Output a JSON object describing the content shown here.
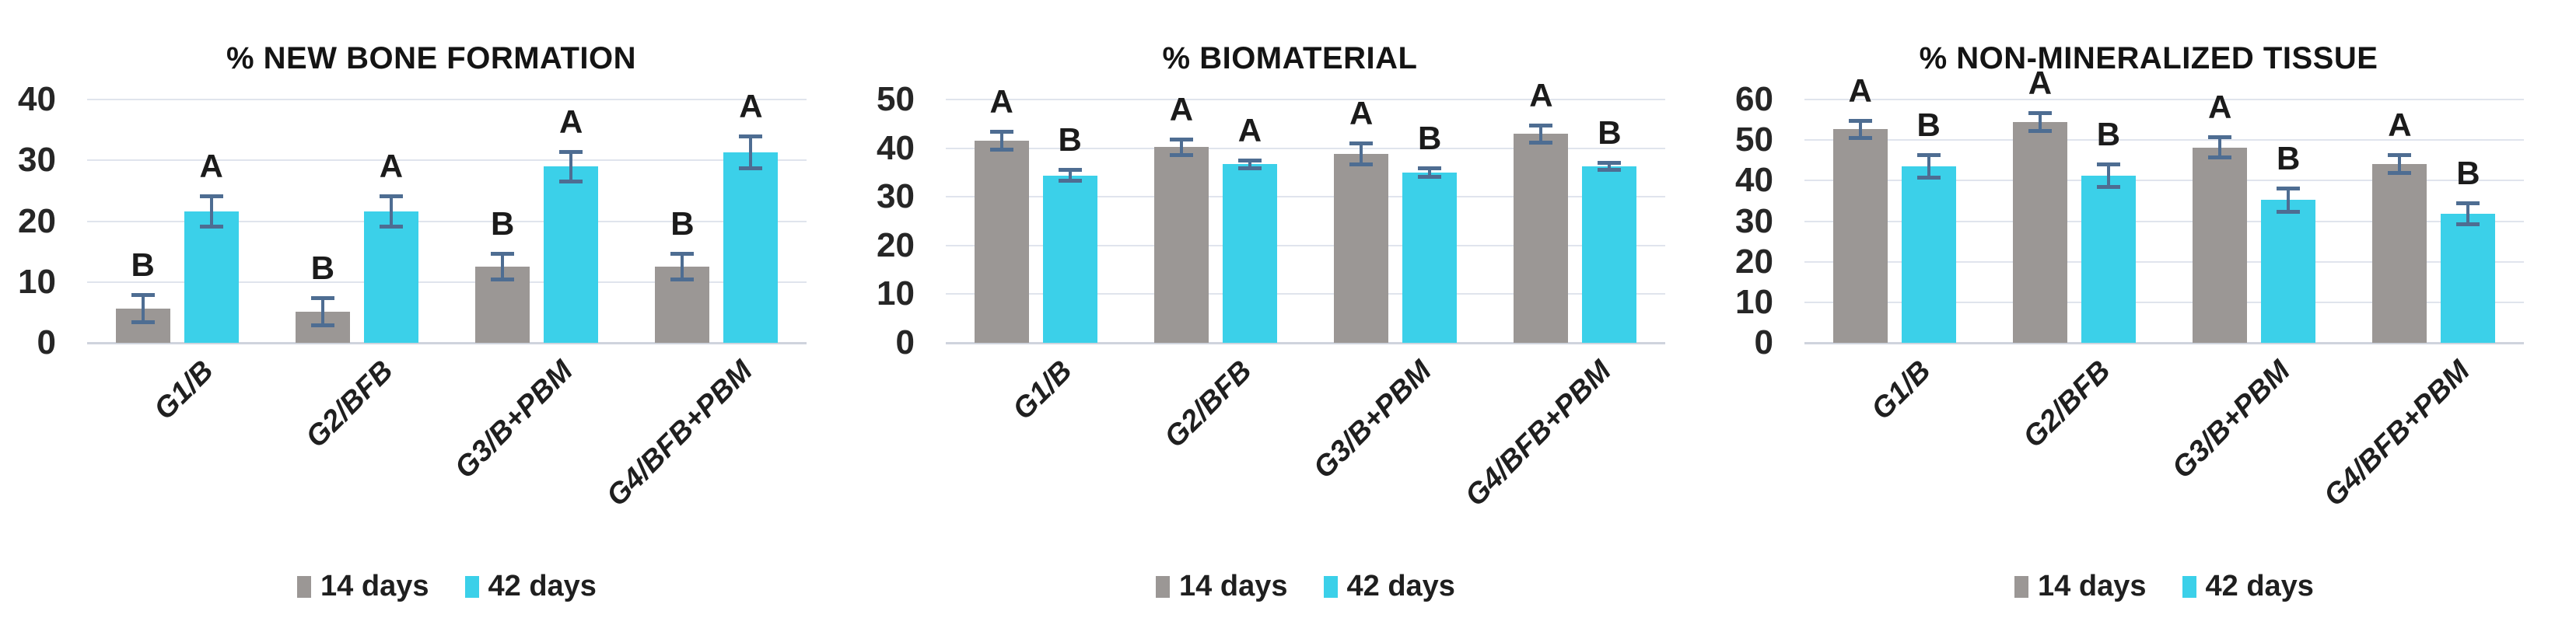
{
  "palette": {
    "bar_gray": "#9b9795",
    "bar_cyan": "#3bd0e9",
    "error_bar": "#4e6d92",
    "gridline": "#e0e4ed",
    "axis_line": "#cfd4dd",
    "title_text": "#141414",
    "tick_text": "#262626",
    "legend_text": "#1f1f1f"
  },
  "legend": {
    "items": [
      {
        "label": "14 days",
        "color_key": "bar_gray"
      },
      {
        "label": "42 days",
        "color_key": "bar_cyan"
      }
    ]
  },
  "chart_data": [
    {
      "type": "bar",
      "title": "% NEW BONE FORMATION",
      "categories": [
        "G1/B",
        "G2/BFB",
        "G3/B+PBM",
        "G4/BFB+PBM"
      ],
      "series": [
        {
          "name": "14 days",
          "values": [
            5.6,
            5.1,
            12.5,
            12.5
          ],
          "errors": [
            2.3,
            2.3,
            2.2,
            2.2
          ],
          "letters": [
            "B",
            "B",
            "B",
            "B"
          ]
        },
        {
          "name": "42 days",
          "values": [
            21.6,
            21.6,
            29.0,
            31.3
          ],
          "errors": [
            2.6,
            2.6,
            2.5,
            2.7
          ],
          "letters": [
            "A",
            "A",
            "A",
            "A"
          ]
        }
      ],
      "ylim": [
        0,
        40
      ],
      "ytick_step": 10,
      "grid": true,
      "legend_position": "bottom"
    },
    {
      "type": "bar",
      "title": "% BIOMATERIAL",
      "categories": [
        "G1/B",
        "G2/BFB",
        "G3/B+PBM",
        "G4/BFB+PBM"
      ],
      "series": [
        {
          "name": "14 days",
          "values": [
            41.5,
            40.2,
            38.8,
            42.9
          ],
          "errors": [
            1.9,
            1.7,
            2.2,
            1.9
          ],
          "letters": [
            "A",
            "A",
            "A",
            "A"
          ]
        },
        {
          "name": "42 days",
          "values": [
            34.4,
            36.7,
            35.0,
            36.3
          ],
          "errors": [
            1.2,
            0.9,
            1.0,
            0.8
          ],
          "letters": [
            "B",
            "A",
            "B",
            "B"
          ]
        }
      ],
      "ylim": [
        0,
        50
      ],
      "ytick_step": 10,
      "grid": true,
      "legend_position": "bottom"
    },
    {
      "type": "bar",
      "title": "% NON-MINERALIZED TISSUE",
      "categories": [
        "G1/B",
        "G2/BFB",
        "G3/B+PBM",
        "G4/BFB+PBM"
      ],
      "series": [
        {
          "name": "14 days",
          "values": [
            52.7,
            54.4,
            48.2,
            44.0
          ],
          "errors": [
            2.2,
            2.3,
            2.6,
            2.3
          ],
          "letters": [
            "A",
            "A",
            "A",
            "A"
          ]
        },
        {
          "name": "42 days",
          "values": [
            43.5,
            41.2,
            35.2,
            31.8
          ],
          "errors": [
            2.8,
            2.9,
            3.0,
            2.7
          ],
          "letters": [
            "B",
            "B",
            "B",
            "B"
          ]
        }
      ],
      "ylim": [
        0,
        60
      ],
      "ytick_step": 10,
      "grid": true,
      "legend_position": "bottom"
    }
  ]
}
